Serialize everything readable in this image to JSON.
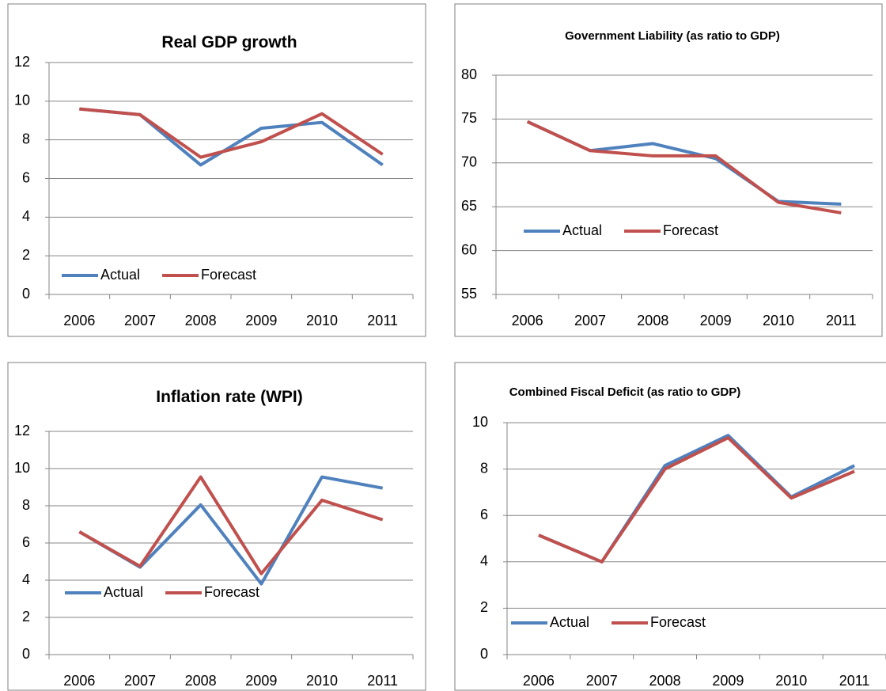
{
  "chart_data": [
    {
      "type": "line",
      "title": "Real GDP growth",
      "categories": [
        "2006",
        "2007",
        "2008",
        "2009",
        "2010",
        "2011"
      ],
      "series": [
        {
          "name": "Actual",
          "color": "#4f81bd",
          "values": [
            9.6,
            9.3,
            6.7,
            8.6,
            8.9,
            6.7
          ]
        },
        {
          "name": "Forecast",
          "color": "#c0504d",
          "values": [
            9.6,
            9.3,
            7.1,
            7.9,
            9.35,
            7.25
          ]
        }
      ],
      "ylim": [
        0,
        12
      ],
      "yticks": [
        0,
        2,
        4,
        6,
        8,
        10,
        12
      ],
      "grid": true
    },
    {
      "type": "line",
      "title": "Government Liability (as ratio to GDP)",
      "categories": [
        "2006",
        "2007",
        "2008",
        "2009",
        "2010",
        "2011"
      ],
      "series": [
        {
          "name": "Actual",
          "color": "#4f81bd",
          "values": [
            74.7,
            71.4,
            72.2,
            70.5,
            65.6,
            65.3
          ]
        },
        {
          "name": "Forecast",
          "color": "#c0504d",
          "values": [
            74.7,
            71.4,
            70.8,
            70.8,
            65.5,
            64.3
          ]
        }
      ],
      "ylim": [
        55,
        80
      ],
      "yticks": [
        55,
        60,
        65,
        70,
        75,
        80
      ],
      "grid": true
    },
    {
      "type": "line",
      "title": "Inflation rate (WPI)",
      "categories": [
        "2006",
        "2007",
        "2008",
        "2009",
        "2010",
        "2011"
      ],
      "series": [
        {
          "name": "Actual",
          "color": "#4f81bd",
          "values": [
            6.6,
            4.7,
            8.05,
            3.8,
            9.55,
            8.95
          ]
        },
        {
          "name": "Forecast",
          "color": "#c0504d",
          "values": [
            6.6,
            4.75,
            9.55,
            4.35,
            8.3,
            7.25
          ]
        }
      ],
      "ylim": [
        0,
        12
      ],
      "yticks": [
        0,
        2,
        4,
        6,
        8,
        10,
        12
      ],
      "grid": true
    },
    {
      "type": "line",
      "title": "Combined Fiscal Deficit (as ratio to GDP)",
      "categories": [
        "2006",
        "2007",
        "2008",
        "2009",
        "2010",
        "2011"
      ],
      "series": [
        {
          "name": "Actual",
          "color": "#4f81bd",
          "values": [
            5.15,
            4.0,
            8.15,
            9.45,
            6.8,
            8.15
          ]
        },
        {
          "name": "Forecast",
          "color": "#c0504d",
          "values": [
            5.15,
            4.0,
            8.0,
            9.35,
            6.75,
            7.9
          ]
        }
      ],
      "ylim": [
        0,
        10
      ],
      "yticks": [
        0,
        2,
        4,
        6,
        8,
        10
      ],
      "grid": true
    }
  ]
}
